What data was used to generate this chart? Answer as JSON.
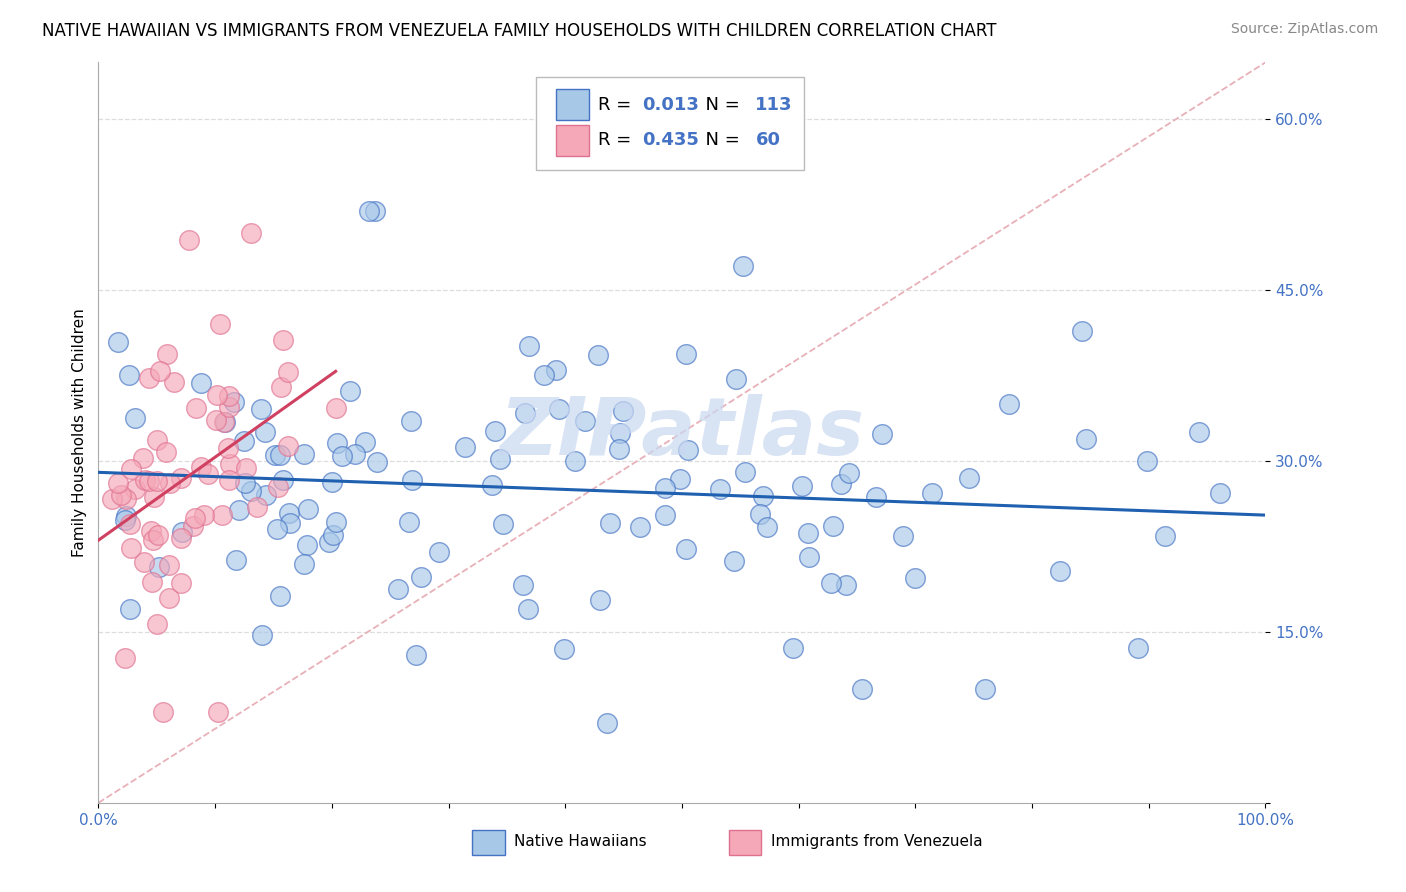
{
  "title": "NATIVE HAWAIIAN VS IMMIGRANTS FROM VENEZUELA FAMILY HOUSEHOLDS WITH CHILDREN CORRELATION CHART",
  "source": "Source: ZipAtlas.com",
  "ylabel": "Family Households with Children",
  "xlim": [
    0.0,
    1.0
  ],
  "ylim": [
    0.0,
    0.65
  ],
  "xtick_positions": [
    0.0,
    0.1,
    0.2,
    0.3,
    0.4,
    0.5,
    0.6,
    0.7,
    0.8,
    0.9,
    1.0
  ],
  "xtick_labels": [
    "0.0%",
    "",
    "",
    "",
    "",
    "",
    "",
    "",
    "",
    "",
    "100.0%"
  ],
  "ytick_positions": [
    0.0,
    0.15,
    0.3,
    0.45,
    0.6
  ],
  "ytick_labels": [
    "",
    "15.0%",
    "30.0%",
    "45.0%",
    "60.0%"
  ],
  "blue_fill": "#a8c8e8",
  "blue_edge": "#4472c4",
  "pink_fill": "#f4a8b8",
  "pink_edge": "#e07090",
  "blue_line_color": "#2060b0",
  "pink_line_color": "#d04060",
  "ref_line_color": "#e8b0b8",
  "grid_color": "#dddddd",
  "legend_R1": "0.013",
  "legend_N1": "113",
  "legend_R2": "0.435",
  "legend_N2": "60",
  "legend_label1": "Native Hawaiians",
  "legend_label2": "Immigrants from Venezuela",
  "watermark": "ZIPatlas",
  "watermark_color": "#c8d8f0",
  "title_fontsize": 12,
  "tick_fontsize": 11,
  "source_fontsize": 10,
  "ylabel_fontsize": 11
}
